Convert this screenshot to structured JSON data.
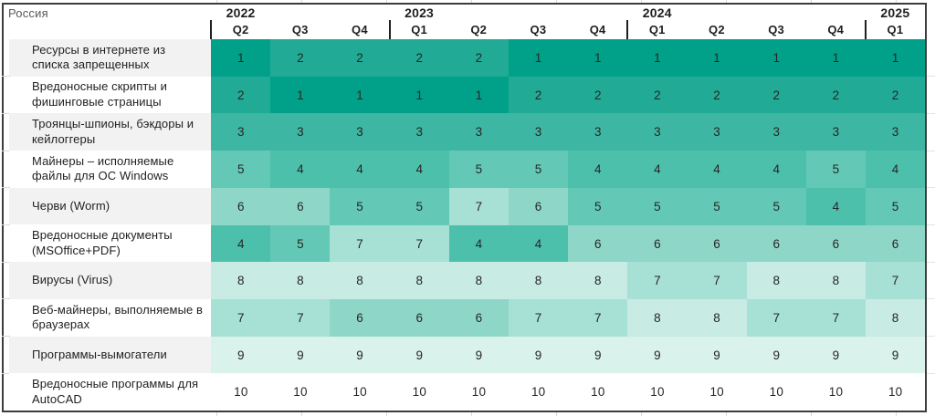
{
  "header": {
    "region": "Россия",
    "years": [
      {
        "label": "2022",
        "quarters": [
          "Q2",
          "Q3",
          "Q4"
        ]
      },
      {
        "label": "2023",
        "quarters": [
          "Q1",
          "Q2",
          "Q3",
          "Q4"
        ]
      },
      {
        "label": "2024",
        "quarters": [
          "Q1",
          "Q2",
          "Q3",
          "Q4"
        ]
      },
      {
        "label": "2025",
        "quarters": [
          "Q1"
        ]
      }
    ]
  },
  "chart_data": {
    "type": "heatmap",
    "title": "Россия",
    "columns": [
      "2022 Q2",
      "2022 Q3",
      "2022 Q4",
      "2023 Q1",
      "2023 Q2",
      "2023 Q3",
      "2023 Q4",
      "2024 Q1",
      "2024 Q2",
      "2024 Q3",
      "2024 Q4",
      "2025 Q1"
    ],
    "row_labels": [
      "Ресурсы в интернете из списка запрещенных",
      "Вредоносные скрипты и фишинговые страницы",
      "Троянцы-шпионы, бэкдоры и кейлоггеры",
      "Майнеры – исполняемые файлы для ОС Windows",
      "Черви (Worm)",
      "Вредоносные документы (MSOffice+PDF)",
      "Вирусы (Virus)",
      "Веб-майнеры, выполняемые в браузерах",
      "Программы-вымогатели",
      "Вредоносные программы для AutoCAD"
    ],
    "values": [
      [
        1,
        2,
        2,
        2,
        2,
        1,
        1,
        1,
        1,
        1,
        1,
        1
      ],
      [
        2,
        1,
        1,
        1,
        1,
        2,
        2,
        2,
        2,
        2,
        2,
        2
      ],
      [
        3,
        3,
        3,
        3,
        3,
        3,
        3,
        3,
        3,
        3,
        3,
        3
      ],
      [
        5,
        4,
        4,
        4,
        5,
        5,
        4,
        4,
        4,
        4,
        5,
        4
      ],
      [
        6,
        6,
        5,
        5,
        7,
        6,
        5,
        5,
        5,
        5,
        4,
        5
      ],
      [
        4,
        5,
        7,
        7,
        4,
        4,
        6,
        6,
        6,
        6,
        6,
        6
      ],
      [
        8,
        8,
        8,
        8,
        8,
        8,
        8,
        7,
        7,
        8,
        8,
        7
      ],
      [
        7,
        7,
        6,
        6,
        6,
        7,
        7,
        8,
        8,
        7,
        7,
        8
      ],
      [
        9,
        9,
        9,
        9,
        9,
        9,
        9,
        9,
        9,
        9,
        9,
        9
      ],
      [
        10,
        10,
        10,
        10,
        10,
        10,
        10,
        10,
        10,
        10,
        10,
        10
      ]
    ],
    "scale": {
      "min": 1,
      "max": 10,
      "ramp": [
        "#00a188",
        "#21ab96",
        "#3db7a3",
        "#4dc0ac",
        "#63c9b6",
        "#8ed7c8",
        "#a7e0d4",
        "#c8ebe3",
        "#daf2ec",
        "#ffffff"
      ]
    }
  },
  "colors": {
    "accent": "#00a188",
    "table_border": "#3c3c3c",
    "label_bg_alt": "#f2f2f2",
    "text_primary": "#1f1f1f",
    "text_muted": "#595959",
    "gridline": "#d9d9d9"
  }
}
